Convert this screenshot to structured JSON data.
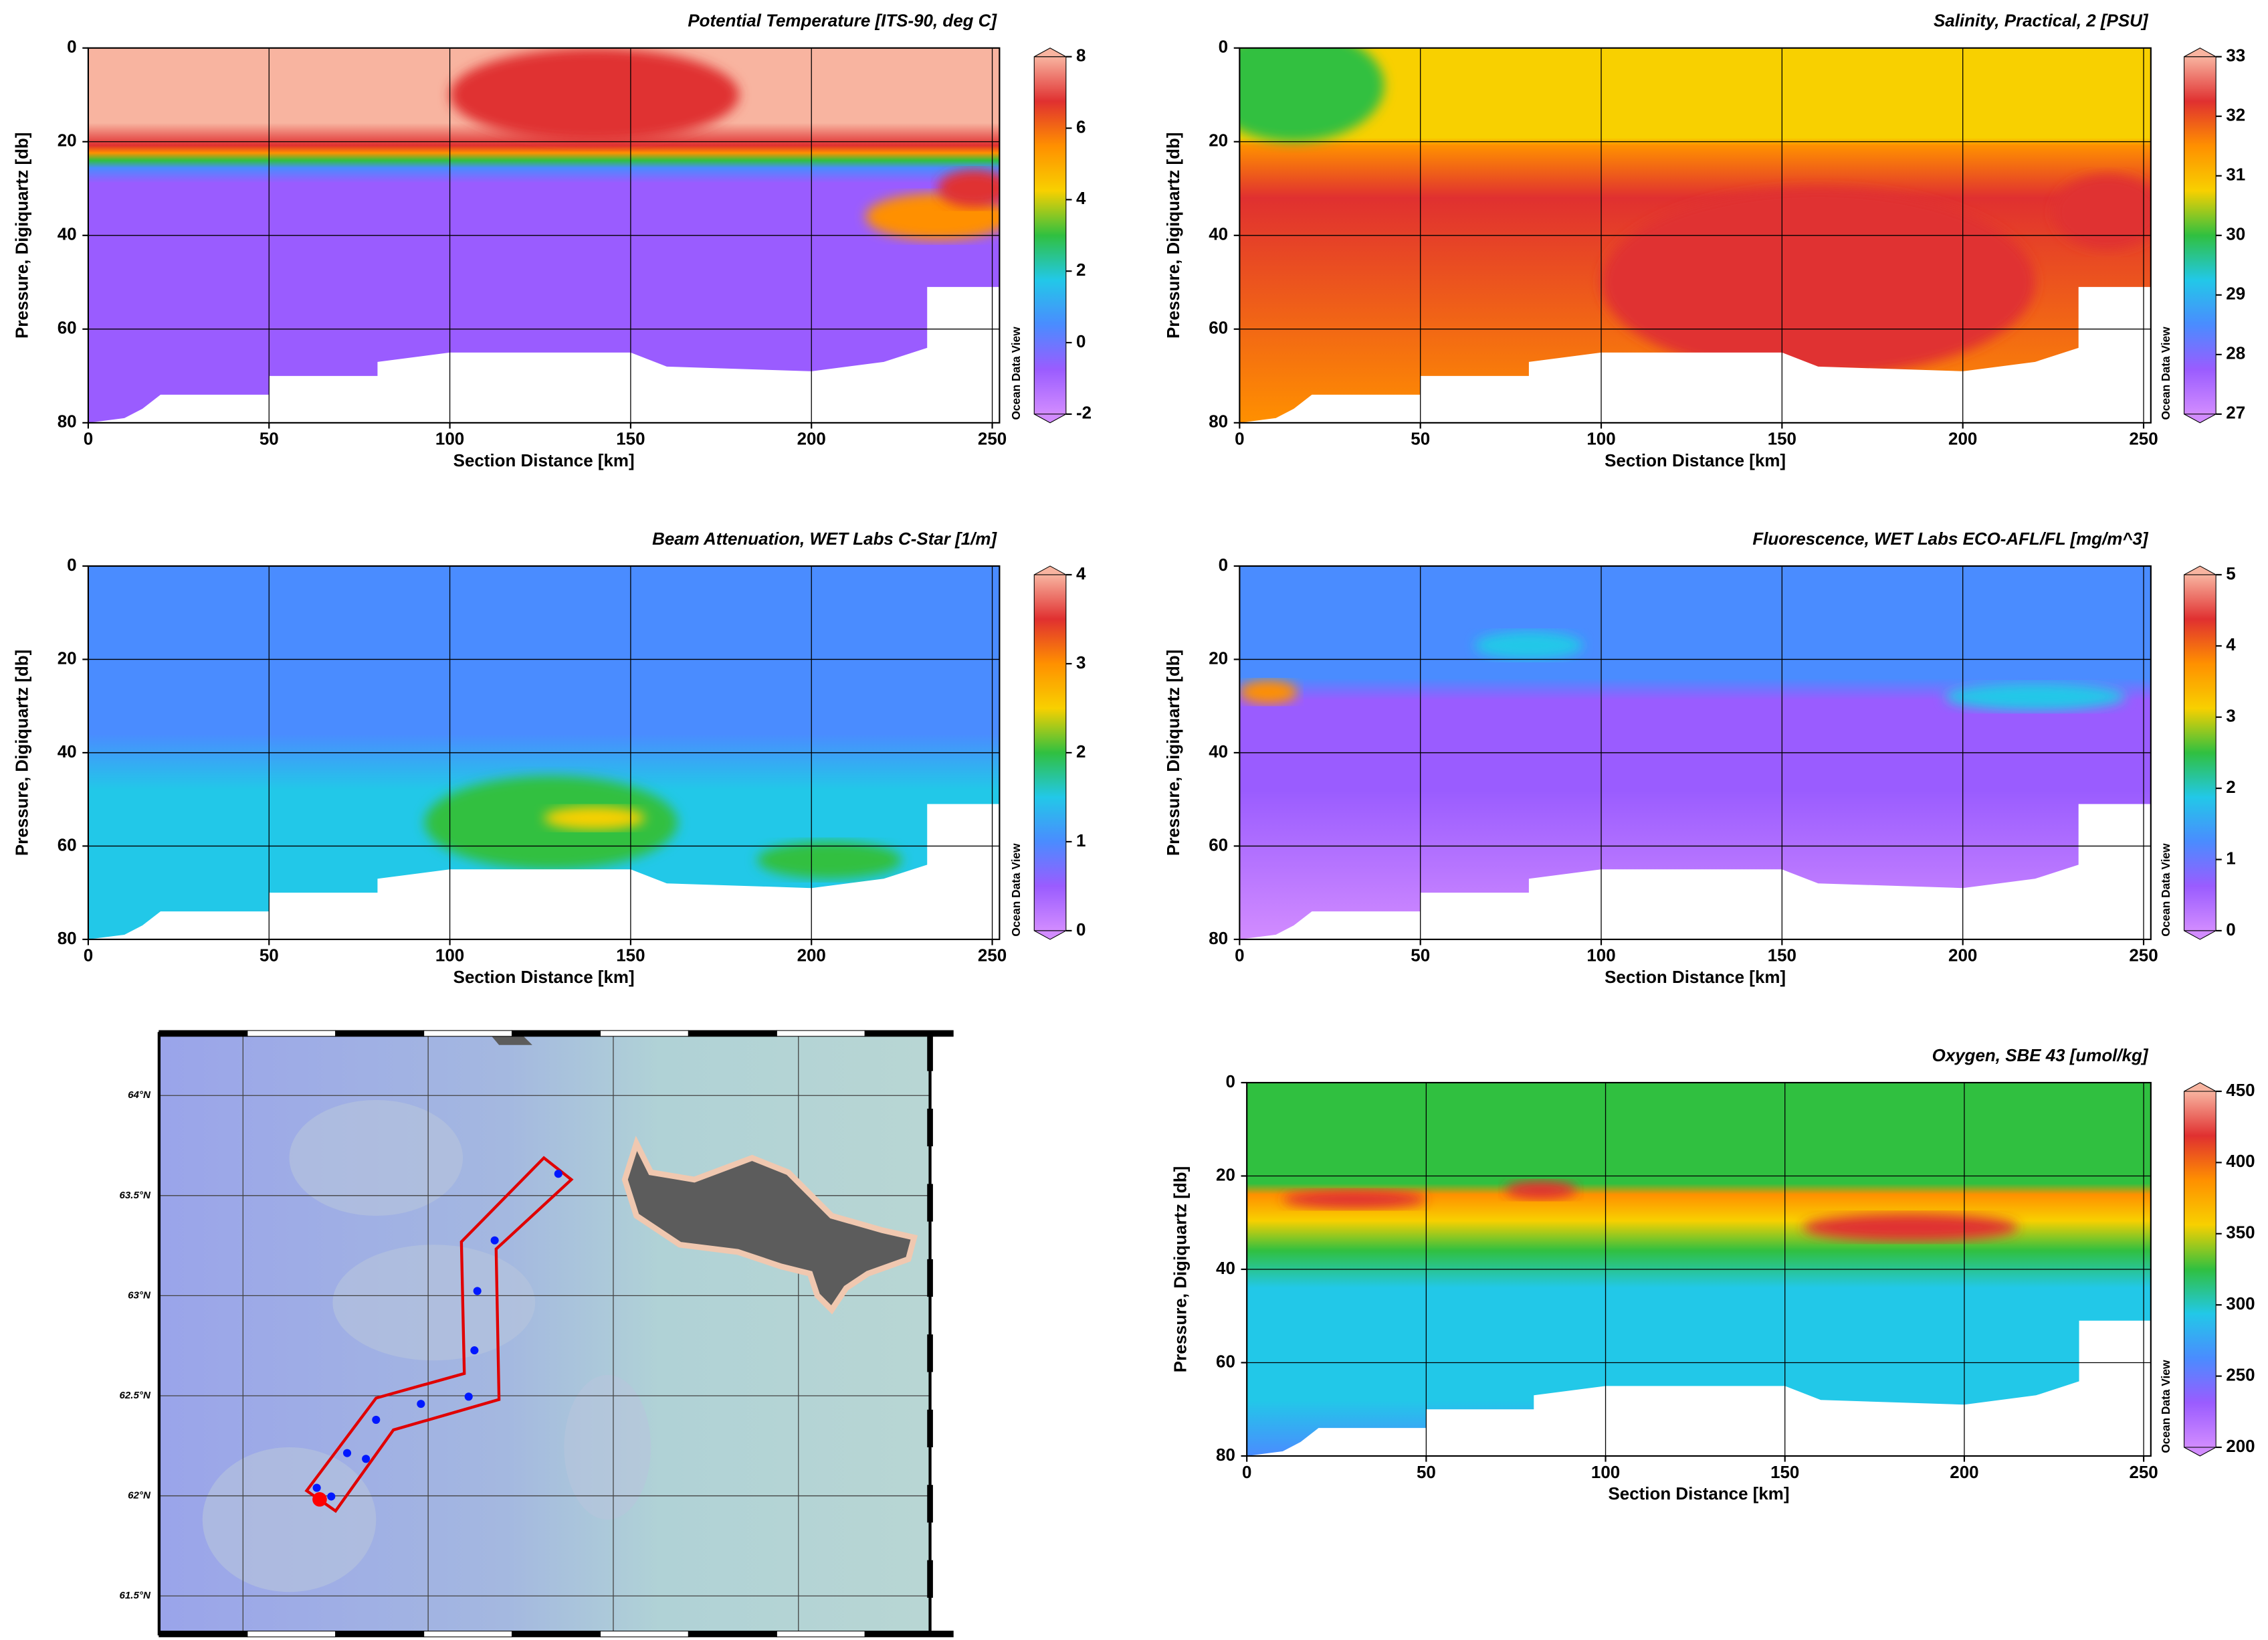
{
  "chart_data": [
    {
      "type": "section",
      "title": "Potential Temperature [ITS-90, deg C]",
      "xlabel": "Section Distance [km]",
      "ylabel": "Pressure, Digiquartz [db]",
      "xlim": [
        0,
        252
      ],
      "ylim": [
        80,
        0
      ],
      "xticks": [
        0,
        50,
        100,
        150,
        200,
        250
      ],
      "yticks": [
        0,
        20,
        40,
        60,
        80
      ],
      "grid": true,
      "clim": [
        -2,
        8
      ],
      "cticks": [
        -2,
        0,
        2,
        4,
        6,
        8
      ],
      "colormap": [
        "#d28cff",
        "#9a5cff",
        "#4a8cff",
        "#22c8e8",
        "#30c040",
        "#f8d000",
        "#ff9000",
        "#e03030",
        "#f8b4a0"
      ],
      "watermark": "Ocean Data View"
    },
    {
      "type": "section",
      "title": "Salinity, Practical, 2 [PSU]",
      "xlabel": "Section Distance [km]",
      "ylabel": "Pressure, Digiquartz [db]",
      "xlim": [
        0,
        252
      ],
      "ylim": [
        80,
        0
      ],
      "xticks": [
        0,
        50,
        100,
        150,
        200,
        250
      ],
      "yticks": [
        0,
        20,
        40,
        60,
        80
      ],
      "grid": true,
      "clim": [
        27,
        33
      ],
      "cticks": [
        27,
        28,
        29,
        30,
        31,
        32,
        33
      ],
      "colormap": [
        "#d28cff",
        "#9a5cff",
        "#4a8cff",
        "#22c8e8",
        "#30c040",
        "#f8d000",
        "#ff9000",
        "#e03030",
        "#f8b4a0"
      ],
      "watermark": "Ocean Data View"
    },
    {
      "type": "section",
      "title": "Beam Attenuation, WET Labs C-Star [1/m]",
      "xlabel": "Section Distance [km]",
      "ylabel": "Pressure, Digiquartz [db]",
      "xlim": [
        0,
        252
      ],
      "ylim": [
        80,
        0
      ],
      "xticks": [
        0,
        50,
        100,
        150,
        200,
        250
      ],
      "yticks": [
        0,
        20,
        40,
        60,
        80
      ],
      "grid": true,
      "clim": [
        0,
        4
      ],
      "cticks": [
        0,
        1,
        2,
        3,
        4
      ],
      "colormap": [
        "#d28cff",
        "#9a5cff",
        "#4a8cff",
        "#22c8e8",
        "#30c040",
        "#f8d000",
        "#ff9000",
        "#e03030",
        "#f8b4a0"
      ],
      "watermark": "Ocean Data View"
    },
    {
      "type": "section",
      "title": "Fluorescence, WET Labs ECO-AFL/FL [mg/m^3]",
      "xlabel": "Section Distance [km]",
      "ylabel": "Pressure, Digiquartz [db]",
      "xlim": [
        0,
        252
      ],
      "ylim": [
        80,
        0
      ],
      "xticks": [
        0,
        50,
        100,
        150,
        200,
        250
      ],
      "yticks": [
        0,
        20,
        40,
        60,
        80
      ],
      "grid": true,
      "clim": [
        0,
        5
      ],
      "cticks": [
        0,
        1,
        2,
        3,
        4,
        5
      ],
      "colormap": [
        "#d28cff",
        "#9a5cff",
        "#4a8cff",
        "#22c8e8",
        "#30c040",
        "#f8d000",
        "#ff9000",
        "#e03030",
        "#f8b4a0"
      ],
      "watermark": "Ocean Data View"
    },
    {
      "type": "map",
      "ylim": [
        61.31,
        64.31
      ],
      "yticks": [
        {
          "value": 61.5,
          "label": "61.5°N"
        },
        {
          "value": 62,
          "label": "62°N"
        },
        {
          "value": 62.5,
          "label": "62.5°N"
        },
        {
          "value": 63,
          "label": "63°N"
        },
        {
          "value": 63.5,
          "label": "63.5°N"
        },
        {
          "value": 64,
          "label": "64°N"
        }
      ],
      "grid": true
    },
    {
      "type": "section",
      "title": "Oxygen, SBE 43 [umol/kg]",
      "xlabel": "Section Distance [km]",
      "ylabel": "Pressure, Digiquartz [db]",
      "xlim": [
        0,
        252
      ],
      "ylim": [
        80,
        0
      ],
      "xticks": [
        0,
        50,
        100,
        150,
        200,
        250
      ],
      "yticks": [
        0,
        20,
        40,
        60,
        80
      ],
      "grid": true,
      "clim": [
        200,
        450
      ],
      "cticks": [
        200,
        250,
        300,
        350,
        400,
        450
      ],
      "colormap": [
        "#d28cff",
        "#9a5cff",
        "#4a8cff",
        "#22c8e8",
        "#30c040",
        "#f8d000",
        "#ff9000",
        "#e03030",
        "#f8b4a0"
      ],
      "watermark": "Ocean Data View"
    }
  ]
}
